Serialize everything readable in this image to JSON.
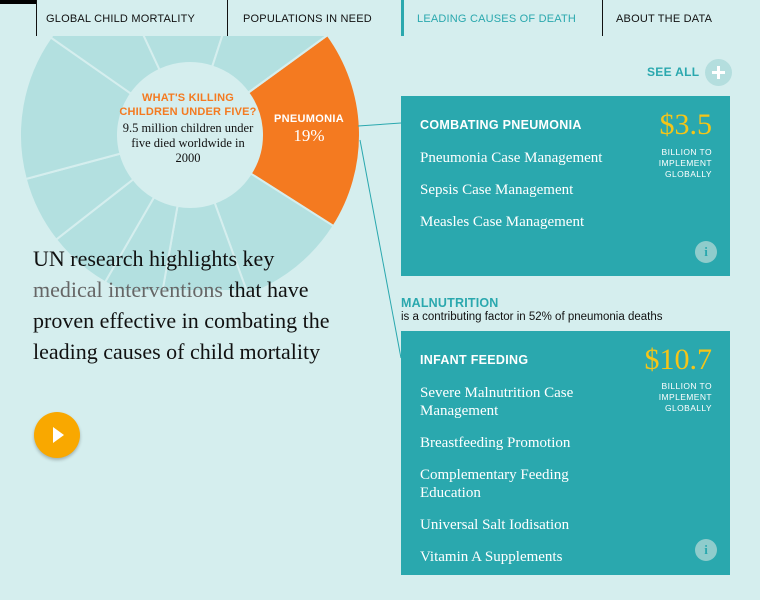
{
  "nav": {
    "tabs": [
      {
        "label": "GLOBAL CHILD MORTALITY",
        "active": false
      },
      {
        "label": "POPULATIONS IN NEED",
        "active": false
      },
      {
        "label": "LEADING CAUSES OF DEATH",
        "active": true
      },
      {
        "label": "ABOUT THE DATA",
        "active": false
      }
    ]
  },
  "donut": {
    "center_title": "WHAT'S KILLING CHILDREN UNDER FIVE?",
    "center_subtitle": "9.5 million children under five died worldwide in 2000",
    "highlight": {
      "label": "PNEUMONIA",
      "percent": "19%",
      "value": 19,
      "color": "#f47a20"
    },
    "other_color": "#b3e0e0"
  },
  "headline": {
    "before": "UN research highlights key ",
    "highlight": "medical interventions",
    "after": " that have proven effective in combating the leading causes of child mortality"
  },
  "see_all": {
    "label": "SEE ALL",
    "icon": "plus-icon"
  },
  "cards": [
    {
      "title": "COMBATING PNEUMONIA",
      "price": "$3.5",
      "price_note": "BILLION TO IMPLEMENT GLOBALLY",
      "items": [
        "Pneumonia Case Management",
        "Sepsis Case Management",
        "Measles Case Management"
      ],
      "info_icon": "info-icon"
    },
    {
      "title": "INFANT FEEDING",
      "price": "$10.7",
      "price_note": "BILLION TO IMPLEMENT GLOBALLY",
      "items": [
        "Severe Malnutrition Case Management",
        "Breastfeeding Promotion",
        "Complementary Feeding Education",
        "Universal Salt Iodisation",
        "Vitamin A Supplements"
      ],
      "info_icon": "info-icon"
    }
  ],
  "malnutrition": {
    "title": "MALNUTRITION",
    "subtitle": "is a contributing factor in 52% of pneumonia deaths"
  },
  "colors": {
    "accent": "#2aa8ae",
    "orange": "#f47a20",
    "gold": "#f5c518",
    "play": "#f9a800",
    "background": "#d5eeee"
  }
}
